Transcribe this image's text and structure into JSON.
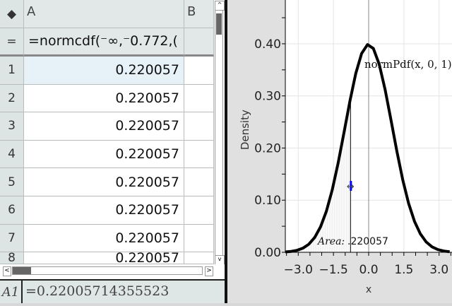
{
  "spreadsheet": {
    "corner_icon": "tag-icon",
    "columns": [
      "A",
      "B"
    ],
    "formula_row_label": "=",
    "formula": "=normcdf(⁻∞,⁻0.772,(",
    "rows": [
      {
        "n": "1",
        "a": "0.220057"
      },
      {
        "n": "2",
        "a": "0.220057"
      },
      {
        "n": "3",
        "a": "0.220057"
      },
      {
        "n": "4",
        "a": "0.220057"
      },
      {
        "n": "5",
        "a": "0.220057"
      },
      {
        "n": "6",
        "a": "0.220057"
      },
      {
        "n": "7",
        "a": "0.220057"
      },
      {
        "n": "8",
        "a": "0.220057"
      }
    ],
    "entry_cell": "A1",
    "entry_value": "=0.22005714355523",
    "selected_fill": "#e6f2f8"
  },
  "chart_data": {
    "type": "line",
    "function_label": "normPdf(x, 0, 1)",
    "mean": 0,
    "sd": 1,
    "shade_upper": -0.772,
    "area_label": "Area:",
    "area_value": ".220057",
    "xlabel": "x",
    "ylabel": "Density",
    "xlim": [
      -3.55,
      3.55
    ],
    "ylim": [
      0,
      0.484
    ],
    "xticks": [
      "-3.0",
      "-1.5",
      "0.0",
      "1.5",
      "3.0"
    ],
    "xtick_values": [
      -3,
      -1.5,
      0,
      1.5,
      3
    ],
    "yticks": [
      "0.00",
      "0.10",
      "0.20",
      "0.30",
      "0.40"
    ],
    "ytick_values": [
      0,
      0.1,
      0.2,
      0.3,
      0.4
    ],
    "grid": true,
    "curve_color": "#000000",
    "cursor_color": "#0000ff"
  }
}
